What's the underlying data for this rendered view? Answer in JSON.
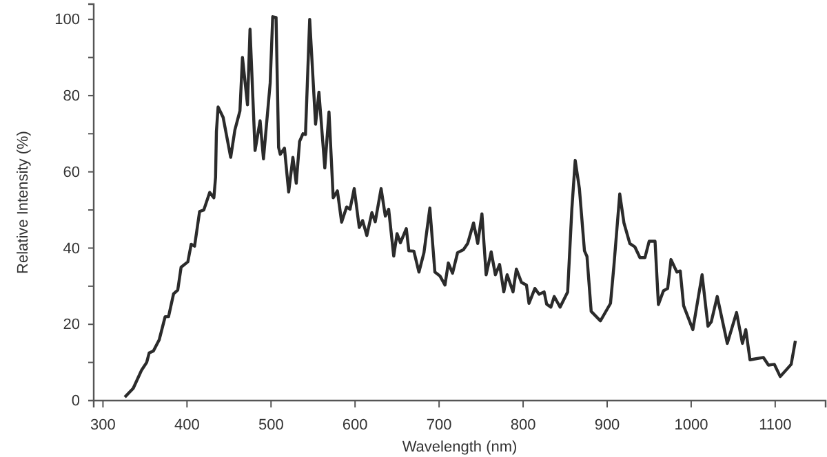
{
  "chart_data": {
    "type": "line",
    "xlabel": "Wavelength (nm)",
    "ylabel": "Relative Intensity (%)",
    "xlim": [
      289,
      1160
    ],
    "xticks": [
      300,
      400,
      500,
      600,
      700,
      800,
      900,
      1000,
      1100
    ],
    "ylim": [
      0,
      104
    ],
    "yticks": [
      0,
      {
        "value": 10,
        "label": null
      },
      20,
      {
        "value": 30,
        "label": null
      },
      40,
      {
        "value": 50,
        "label": null
      },
      60,
      {
        "value": 70,
        "label": null
      },
      80,
      {
        "value": 90,
        "label": null
      },
      100
    ],
    "marker": "none",
    "line_style": "solid",
    "series": [
      {
        "color": "#2b2b2b",
        "x": [
          326,
          336,
          346,
          352,
          355,
          360,
          367,
          374,
          378,
          384,
          389,
          393,
          401,
          405,
          409,
          415,
          420,
          427,
          432,
          434,
          435,
          437,
          443,
          452,
          457,
          463,
          466,
          472,
          475,
          481,
          487,
          491,
          499,
          502,
          506,
          509,
          511,
          516,
          521,
          526,
          530,
          534,
          538,
          541,
          546,
          553,
          557,
          564,
          569,
          574,
          579,
          584,
          590,
          594,
          599,
          605,
          609,
          614,
          620,
          624,
          631,
          636,
          640,
          646,
          650,
          654,
          661,
          664,
          670,
          676,
          682,
          689,
          695,
          701,
          707,
          711,
          716,
          722,
          729,
          734,
          741,
          746,
          751,
          756,
          762,
          767,
          772,
          777,
          781,
          788,
          792,
          798,
          804,
          807,
          814,
          819,
          825,
          828,
          833,
          837,
          844,
          853,
          858,
          862,
          867,
          873,
          876,
          881,
          892,
          904,
          908,
          915,
          920,
          927,
          933,
          939,
          945,
          950,
          957,
          961,
          967,
          972,
          976,
          983,
          987,
          991,
          1002,
          1013,
          1020,
          1024,
          1031,
          1043,
          1054,
          1061,
          1065,
          1070,
          1086,
          1092,
          1099,
          1106,
          1119,
          1124
        ],
        "values": [
          0.9,
          3.2,
          8,
          10,
          12.5,
          13,
          16,
          22,
          22,
          28,
          29,
          35,
          36.4,
          41,
          40.5,
          49.6,
          50,
          54.6,
          53.2,
          58.6,
          70.6,
          77,
          74.3,
          63.8,
          71,
          76,
          90,
          77.6,
          97.4,
          65.6,
          73.4,
          63.4,
          83.3,
          100.7,
          100.5,
          66.4,
          64.6,
          66.2,
          54.7,
          63.8,
          57,
          68,
          70,
          69.8,
          100,
          72.5,
          80.9,
          61,
          75.7,
          53.2,
          55,
          46.8,
          50.8,
          50.2,
          55.6,
          45.4,
          47.2,
          43.3,
          49.3,
          46.9,
          55.6,
          48.4,
          50.2,
          37.9,
          43.8,
          41.4,
          45.1,
          39.3,
          39.2,
          33.7,
          38.8,
          50.5,
          33.7,
          32.7,
          30.3,
          36.1,
          33.4,
          38.8,
          39.6,
          41.2,
          46.6,
          41.2,
          49,
          33,
          39,
          33,
          35.7,
          28.5,
          33,
          28.5,
          34.5,
          31,
          30.3,
          25.5,
          29.4,
          27.9,
          28.5,
          25.3,
          24.5,
          27.3,
          24.5,
          28.5,
          50.2,
          63,
          55.6,
          39.3,
          37.8,
          23.4,
          20.9,
          25.5,
          35.2,
          54.2,
          46.6,
          41.2,
          40.3,
          37.5,
          37.5,
          41.8,
          41.8,
          25.2,
          28.8,
          29.4,
          37,
          33.7,
          34,
          24.9,
          18.6,
          33,
          19.5,
          20.7,
          27.3,
          15,
          23.1,
          15,
          18.6,
          10.7,
          11.3,
          9.3,
          9.5,
          6.3,
          9.5,
          15.7
        ]
      }
    ]
  }
}
